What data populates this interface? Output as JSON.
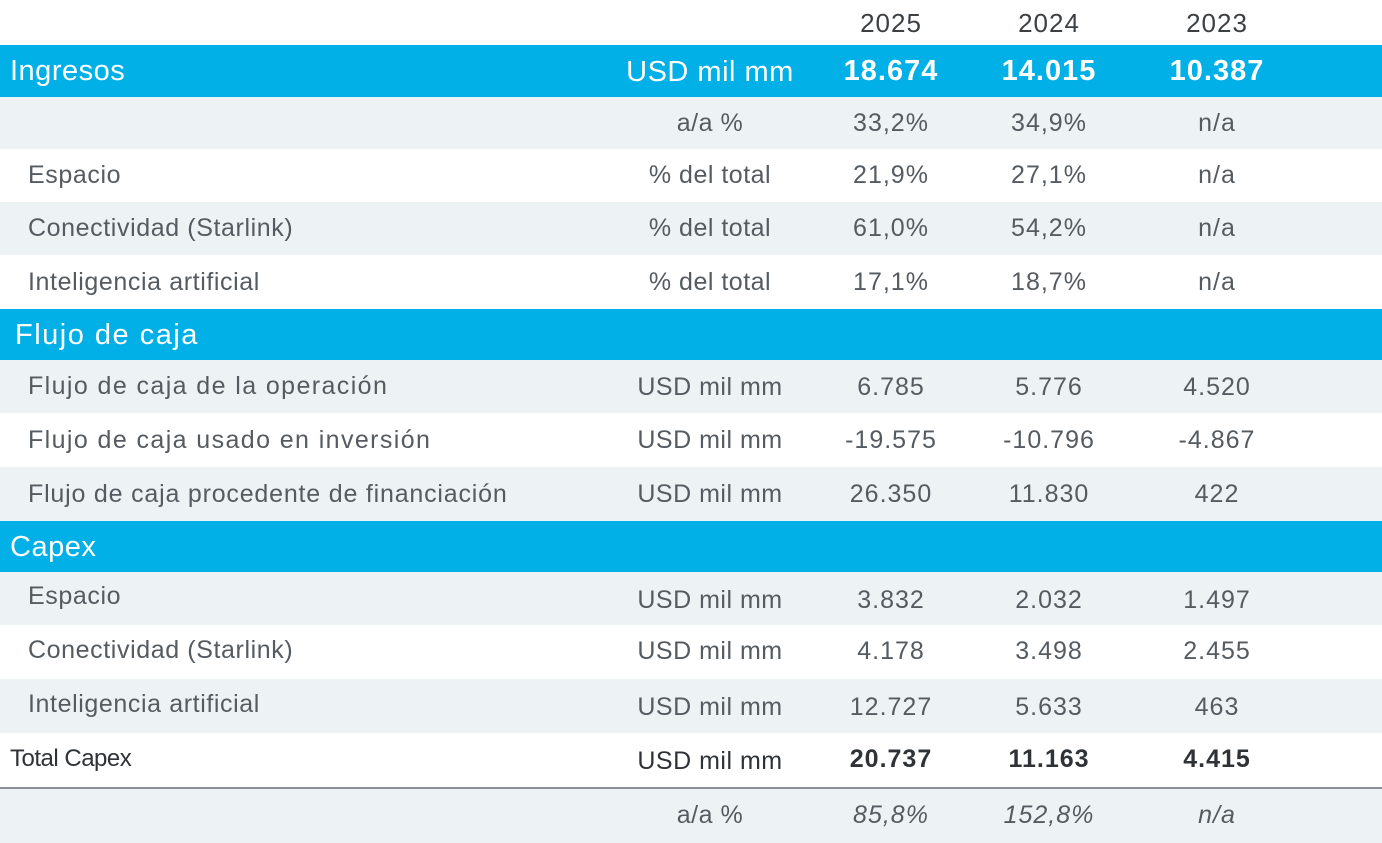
{
  "header": {
    "years": [
      "2025",
      "2024",
      "2023"
    ]
  },
  "ingresos": {
    "title": "Ingresos",
    "unit": "USD mil mm",
    "values": [
      "18.674",
      "14.015",
      "10.387"
    ],
    "rows": [
      {
        "label": "",
        "unit": "a/a %",
        "values": [
          "33,2%",
          "34,9%",
          "n/a"
        ]
      },
      {
        "label": "Espacio",
        "unit": "% del total",
        "values": [
          "21,9%",
          "27,1%",
          "n/a"
        ]
      },
      {
        "label": "Conectividad (Starlink)",
        "unit": "% del total",
        "values": [
          "61,0%",
          "54,2%",
          "n/a"
        ]
      },
      {
        "label": "Inteligencia artificial",
        "unit": "% del total",
        "values": [
          "17,1%",
          "18,7%",
          "n/a"
        ]
      }
    ]
  },
  "flujo": {
    "title": "Flujo de caja",
    "rows": [
      {
        "label": "Flujo de caja de la operación",
        "unit": "USD  mil mm",
        "values": [
          "6.785",
          "5.776",
          "4.520"
        ]
      },
      {
        "label": "Flujo de caja usado en inversión",
        "unit": "USD  mil mm",
        "values": [
          "-19.575",
          "-10.796",
          "-4.867"
        ]
      },
      {
        "label": "Flujo de caja procedente de financiación",
        "unit": "USD mil mm",
        "values": [
          "26.350",
          "11.830",
          "422"
        ]
      }
    ]
  },
  "capex": {
    "title": "Capex",
    "rows": [
      {
        "label": "Espacio",
        "unit": "USD mil mm",
        "values": [
          "3.832",
          "2.032",
          "1.497"
        ]
      },
      {
        "label": "Conectividad (Starlink)",
        "unit": "USD mil mm",
        "values": [
          "4.178",
          "3.498",
          "2.455"
        ]
      },
      {
        "label": "Inteligencia artificial",
        "unit": "USD mil mm",
        "values": [
          "12.727",
          "5.633",
          "463"
        ]
      }
    ],
    "total": {
      "label": "Total Capex",
      "unit": "USD mil mm",
      "values": [
        "20.737",
        "11.163",
        "4.415"
      ]
    },
    "growth": {
      "label": "",
      "unit": "a/a %",
      "values": [
        "85,8%",
        "152,8%",
        "n/a"
      ]
    }
  },
  "colors": {
    "section_bg": "#00b0e6",
    "row_shade": "#edf3f5",
    "text": "#555b60"
  }
}
